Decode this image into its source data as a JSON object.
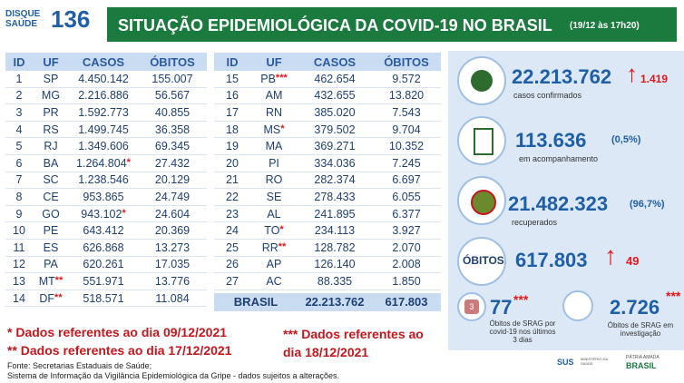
{
  "header": {
    "logo_top": "DISQUE",
    "logo_bottom": "SAÚDE",
    "logo_number": "136",
    "title": "SITUAÇÃO EPIDEMIOLÓGICA DA COVID-19 NO BRASIL",
    "date": "(19/12 às 17h20)"
  },
  "table1": {
    "columns": [
      "ID",
      "UF",
      "CASOS",
      "ÓBITOS"
    ],
    "rows": [
      {
        "id": "1",
        "uf": "SP",
        "casos": "4.450.142",
        "obitos": "155.007"
      },
      {
        "id": "2",
        "uf": "MG",
        "casos": "2.216.886",
        "obitos": "56.567"
      },
      {
        "id": "3",
        "uf": "PR",
        "casos": "1.592.773",
        "obitos": "40.855"
      },
      {
        "id": "4",
        "uf": "RS",
        "casos": "1.499.745",
        "obitos": "36.358"
      },
      {
        "id": "5",
        "uf": "RJ",
        "casos": "1.349.606",
        "obitos": "69.345"
      },
      {
        "id": "6",
        "uf": "BA",
        "casos": "1.264.804",
        "casos_note": "*",
        "obitos": "27.432"
      },
      {
        "id": "7",
        "uf": "SC",
        "casos": "1.238.546",
        "obitos": "20.129"
      },
      {
        "id": "8",
        "uf": "CE",
        "casos": "953.865",
        "obitos": "24.749"
      },
      {
        "id": "9",
        "uf": "GO",
        "casos": "943.102",
        "casos_note": "*",
        "obitos": "24.604"
      },
      {
        "id": "10",
        "uf": "PE",
        "casos": "643.412",
        "obitos": "20.369"
      },
      {
        "id": "11",
        "uf": "ES",
        "casos": "626.868",
        "obitos": "13.273"
      },
      {
        "id": "12",
        "uf": "PA",
        "casos": "620.261",
        "obitos": "17.035"
      },
      {
        "id": "13",
        "uf": "MT",
        "uf_note": "**",
        "casos": "551.971",
        "obitos": "13.776"
      },
      {
        "id": "14",
        "uf": "DF",
        "uf_note": "**",
        "casos": "518.571",
        "obitos": "11.084"
      }
    ]
  },
  "table2": {
    "columns": [
      "ID",
      "UF",
      "CASOS",
      "ÓBITOS"
    ],
    "rows": [
      {
        "id": "15",
        "uf": "PB",
        "uf_note": "***",
        "casos": "462.654",
        "obitos": "9.572"
      },
      {
        "id": "16",
        "uf": "AM",
        "casos": "432.655",
        "obitos": "13.820"
      },
      {
        "id": "17",
        "uf": "RN",
        "casos": "385.020",
        "obitos": "7.543"
      },
      {
        "id": "18",
        "uf": "MS",
        "uf_note": "*",
        "casos": "379.502",
        "obitos": "9.704"
      },
      {
        "id": "19",
        "uf": "MA",
        "casos": "369.271",
        "obitos": "10.352"
      },
      {
        "id": "20",
        "uf": "PI",
        "casos": "334.036",
        "obitos": "7.245"
      },
      {
        "id": "21",
        "uf": "RO",
        "casos": "282.374",
        "obitos": "6.697"
      },
      {
        "id": "22",
        "uf": "SE",
        "casos": "278.433",
        "obitos": "6.055"
      },
      {
        "id": "23",
        "uf": "AL",
        "casos": "241.895",
        "obitos": "6.377"
      },
      {
        "id": "24",
        "uf": "TO",
        "uf_note": "*",
        "casos": "234.113",
        "obitos": "3.927"
      },
      {
        "id": "25",
        "uf": "RR",
        "uf_note": "**",
        "casos": "128.782",
        "obitos": "2.070"
      },
      {
        "id": "26",
        "uf": "AP",
        "casos": "126.140",
        "obitos": "2.008"
      },
      {
        "id": "27",
        "uf": "AC",
        "casos": "88.335",
        "obitos": "1.850"
      }
    ],
    "total": {
      "label": "BRASIL",
      "casos": "22.213.762",
      "obitos": "617.803"
    }
  },
  "notes": [
    "* Dados referentes ao dia 09/12/2021",
    "** Dados referentes ao dia 17/12/2021",
    "*** Dados referentes ao dia 18/12/2021"
  ],
  "source": [
    "Fonte: Secretarias Estaduais de Saúde;",
    "Sistema de Informação da Vigilância Epidemiológica da Gripe - dados sujeitos a alterações."
  ],
  "stats": {
    "confirmed": {
      "value": "22.213.762",
      "delta": "1.419",
      "label": "casos confirmados"
    },
    "monitoring": {
      "value": "113.636",
      "pct": "(0,5%)",
      "label": "em acompanhamento"
    },
    "recovered": {
      "value": "21.482.323",
      "pct": "(96,7%)",
      "label": "recuperados"
    },
    "deaths": {
      "title": "ÓBITOS",
      "value": "617.803",
      "delta": "49"
    },
    "srag_recent": {
      "icon": "3",
      "value": "77",
      "note": "***",
      "label": "Óbitos de SRAG por covid-19 nos últimos 3 dias"
    },
    "srag_investigation": {
      "value": "2.726",
      "note": "***",
      "label": "Óbitos de SRAG em investigação"
    }
  },
  "footer": {
    "sus": "SUS",
    "ministry": "MINISTÉRIO DA SAÚDE",
    "slogan": "PÁTRIA AMADA",
    "country": "BRASIL"
  }
}
